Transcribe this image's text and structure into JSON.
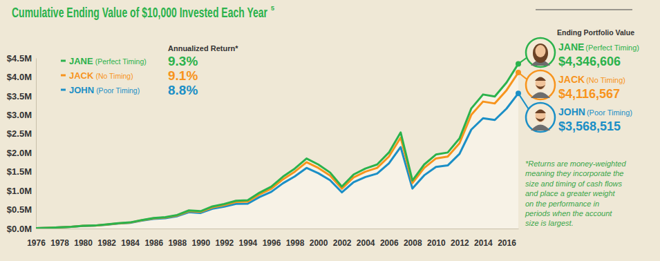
{
  "chart_data": {
    "type": "line",
    "title": "Cumulative Ending Value of $10,000 Invested Each Year",
    "title_note": "5",
    "legend_title": "Annualized Return*",
    "end_title": "Ending Portfolio Value",
    "footnote": [
      "*Returns are money-weighted",
      "meaning they incorporate the",
      "size and timing of cash flows",
      "and place a greater weight",
      "on the performance in",
      "periods when the account",
      "size is largest."
    ],
    "x": [
      1976,
      1977,
      1978,
      1979,
      1980,
      1981,
      1982,
      1983,
      1984,
      1985,
      1986,
      1987,
      1988,
      1989,
      1990,
      1991,
      1992,
      1993,
      1994,
      1995,
      1996,
      1997,
      1998,
      1999,
      2000,
      2001,
      2002,
      2003,
      2004,
      2005,
      2006,
      2007,
      2008,
      2009,
      2010,
      2011,
      2012,
      2013,
      2014,
      2015,
      2016,
      2017
    ],
    "xlim": [
      1976,
      2017
    ],
    "xticks": [
      1976,
      1978,
      1980,
      1982,
      1984,
      1986,
      1988,
      1990,
      1992,
      1994,
      1996,
      1998,
      2000,
      2002,
      2004,
      2006,
      2008,
      2010,
      2012,
      2014,
      2016
    ],
    "ylim": [
      0,
      4500000
    ],
    "yticks": [
      {
        "value": 0,
        "label": "$0.0M"
      },
      {
        "value": 500000,
        "label": "$0.5M"
      },
      {
        "value": 1000000,
        "label": "$1.0M"
      },
      {
        "value": 1500000,
        "label": "$1.5M"
      },
      {
        "value": 2000000,
        "label": "$2.0M"
      },
      {
        "value": 2500000,
        "label": "$2.5M"
      },
      {
        "value": 3000000,
        "label": "$3.0M"
      },
      {
        "value": 3500000,
        "label": "$3.5M"
      },
      {
        "value": 4000000,
        "label": "$4.0M"
      },
      {
        "value": 4500000,
        "label": "$4.5M"
      }
    ],
    "series": [
      {
        "name": "JANE (Perfect Timing)",
        "color": "#2bb24c",
        "annualized_return": {
          "value": 9.3,
          "label": "9.3%"
        },
        "ending_value": {
          "value": 4346606,
          "label": "$4,346,606"
        },
        "values": [
          10000,
          19200,
          31400,
          47700,
          73500,
          79800,
          108000,
          142000,
          162000,
          225000,
          277000,
          300000,
          358000,
          478000,
          458000,
          584000,
          648000,
          733000,
          745000,
          946000,
          1105000,
          1370000,
          1582000,
          1848000,
          1690000,
          1478000,
          1108000,
          1425000,
          1584000,
          1690000,
          2006000,
          2535000,
          1267000,
          1690000,
          1953000,
          2006000,
          2376000,
          3168000,
          3537000,
          3485000,
          3854000,
          4346606
        ]
      },
      {
        "name": "JACK (No Timing)",
        "color": "#f7941d",
        "annualized_return": {
          "value": 9.1,
          "label": "9.1%"
        },
        "ending_value": {
          "value": 4116567,
          "label": "$4,116,567"
        },
        "values": [
          10000,
          19000,
          31000,
          47000,
          72000,
          78000,
          105000,
          138000,
          157000,
          218000,
          268000,
          290000,
          345000,
          460000,
          440000,
          560000,
          620000,
          700000,
          710000,
          900000,
          1050000,
          1300000,
          1500000,
          1750000,
          1600000,
          1400000,
          1050000,
          1350000,
          1500000,
          1600000,
          1900000,
          2400000,
          1200000,
          1600000,
          1850000,
          1900000,
          2250000,
          3000000,
          3350000,
          3300000,
          3650000,
          4116567
        ]
      },
      {
        "name": "JOHN (Poor Timing)",
        "color": "#1b8fc6",
        "annualized_return": {
          "value": 8.8,
          "label": "8.8%"
        },
        "ending_value": {
          "value": 3568515,
          "label": "$3,568,515"
        },
        "values": [
          10000,
          18800,
          30500,
          46000,
          70000,
          75500,
          101000,
          132000,
          150000,
          207000,
          254000,
          274000,
          325000,
          432000,
          412000,
          523000,
          578000,
          650000,
          657000,
          832000,
          968000,
          1195000,
          1375000,
          1600000,
          1460000,
          1275000,
          955000,
          1225000,
          1360000,
          1450000,
          1720000,
          2150000,
          1055000,
          1405000,
          1625000,
          1665000,
          1970000,
          2610000,
          2910000,
          2865000,
          3165000,
          3568515
        ]
      }
    ]
  }
}
